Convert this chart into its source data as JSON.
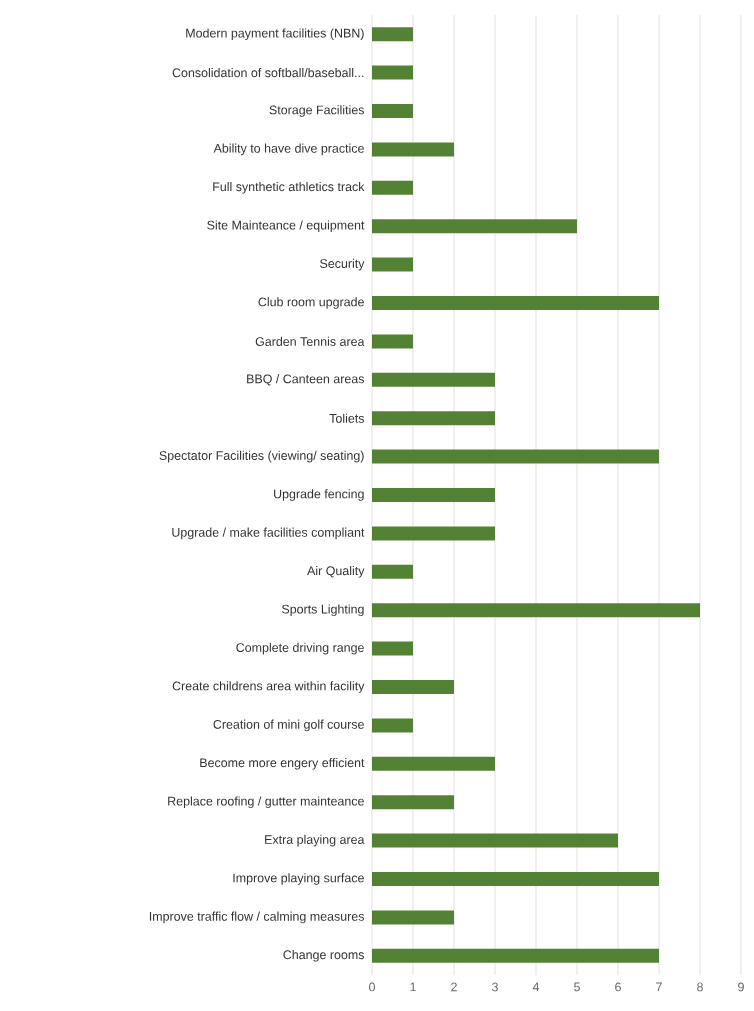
{
  "chart_data": {
    "type": "bar",
    "orientation": "horizontal",
    "color": "#548235",
    "categories": [
      "Modern payment facilities (NBN)",
      "Consolidation of softball/baseball...",
      "Storage Facilities",
      "Ability to have dive practice",
      "Full synthetic athletics track",
      "Site Mainteance / equipment",
      "Security",
      "Club room upgrade",
      "Garden Tennis area",
      "BBQ / Canteen areas",
      "Toliets",
      "Spectator Facilities (viewing/ seating)",
      "Upgrade fencing",
      "Upgrade  / make facilities compliant",
      "Air Quality",
      "Sports Lighting",
      "Complete driving range",
      "Create childrens area within facility",
      "Creation of mini golf course",
      "Become more engery efficient",
      "Replace roofing / gutter mainteance",
      "Extra playing area",
      "Improve playing surface",
      "Improve traffic flow / calming measures",
      "Change rooms"
    ],
    "values": [
      1,
      1,
      1,
      2,
      1,
      5,
      1,
      7,
      1,
      3,
      3,
      7,
      3,
      3,
      1,
      8,
      1,
      2,
      1,
      3,
      2,
      6,
      7,
      2,
      7
    ],
    "xlim": [
      0,
      9
    ],
    "xticks": [
      0,
      1,
      2,
      3,
      4,
      5,
      6,
      7,
      8,
      9
    ],
    "grid": "x"
  }
}
